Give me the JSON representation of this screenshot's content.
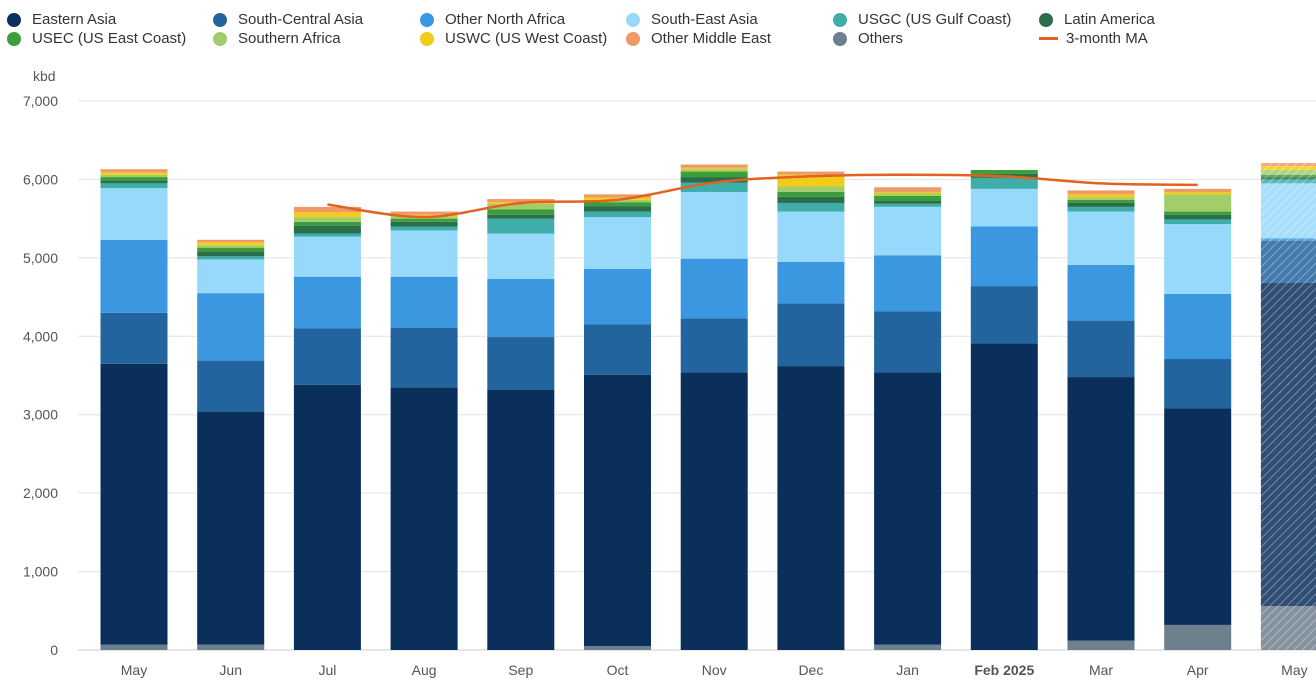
{
  "chart_data": {
    "type": "bar",
    "stacked": true,
    "ylabel": "kbd",
    "ylim": [
      0,
      7000
    ],
    "yticks": [
      "0",
      "1,000",
      "2,000",
      "3,000",
      "4,000",
      "5,000",
      "6,000",
      "7,000"
    ],
    "categories": [
      "May",
      "Jun",
      "Jul",
      "Aug",
      "Sep",
      "Oct",
      "Nov",
      "Dec",
      "Jan",
      "Feb 2025",
      "Mar",
      "Apr",
      "May"
    ],
    "bold_categories": [
      "Feb 2025"
    ],
    "forecast_categories": [
      "May"
    ],
    "grid": true,
    "legend_position": "top",
    "series": [
      {
        "name": "Others",
        "color": "#6e7f8d",
        "values": [
          70,
          70,
          0,
          0,
          0,
          50,
          0,
          0,
          70,
          0,
          120,
          320,
          560
        ]
      },
      {
        "name": "Eastern Asia",
        "color": "#0b2f5b",
        "values": [
          3580,
          2970,
          3380,
          3350,
          3320,
          3460,
          3540,
          3620,
          3470,
          3910,
          3360,
          2760,
          4120
        ]
      },
      {
        "name": "South-Central Asia",
        "color": "#22649d",
        "values": [
          650,
          650,
          720,
          760,
          670,
          640,
          690,
          800,
          780,
          730,
          720,
          630,
          540
        ]
      },
      {
        "name": "Other North Africa",
        "color": "#3a97e0",
        "values": [
          930,
          860,
          660,
          650,
          740,
          710,
          760,
          530,
          710,
          760,
          710,
          830,
          30
        ]
      },
      {
        "name": "South-East Asia",
        "color": "#96d9fb",
        "values": [
          660,
          430,
          510,
          590,
          580,
          660,
          850,
          640,
          620,
          480,
          680,
          890,
          700
        ]
      },
      {
        "name": "USGC (US Gulf Coast)",
        "color": "#3fada9",
        "values": [
          60,
          40,
          40,
          50,
          190,
          70,
          120,
          110,
          40,
          140,
          60,
          60,
          50
        ]
      },
      {
        "name": "Latin America",
        "color": "#2a6e4a",
        "values": [
          40,
          60,
          100,
          60,
          50,
          70,
          70,
          80,
          40,
          50,
          50,
          60,
          30
        ]
      },
      {
        "name": "USEC (US East Coast)",
        "color": "#3c9d3b",
        "values": [
          40,
          50,
          50,
          40,
          70,
          50,
          70,
          60,
          60,
          50,
          40,
          40,
          30
        ]
      },
      {
        "name": "Southern Africa",
        "color": "#a3cd6a",
        "values": [
          30,
          30,
          60,
          30,
          70,
          30,
          30,
          70,
          30,
          0,
          30,
          220,
          60
        ]
      },
      {
        "name": "USWC (US West Coast)",
        "color": "#f2cc1b",
        "values": [
          30,
          40,
          60,
          20,
          20,
          30,
          20,
          150,
          20,
          0,
          40,
          30,
          50
        ]
      },
      {
        "name": "Other Middle East",
        "color": "#ee9a66",
        "values": [
          40,
          30,
          70,
          40,
          40,
          40,
          40,
          40,
          60,
          0,
          50,
          40,
          40
        ]
      }
    ],
    "line_series": {
      "name": "3-month MA",
      "color": "#e2621f",
      "values": [
        null,
        null,
        5680,
        5520,
        5700,
        5740,
        5960,
        6040,
        6060,
        6040,
        5950,
        5930,
        null
      ]
    }
  }
}
